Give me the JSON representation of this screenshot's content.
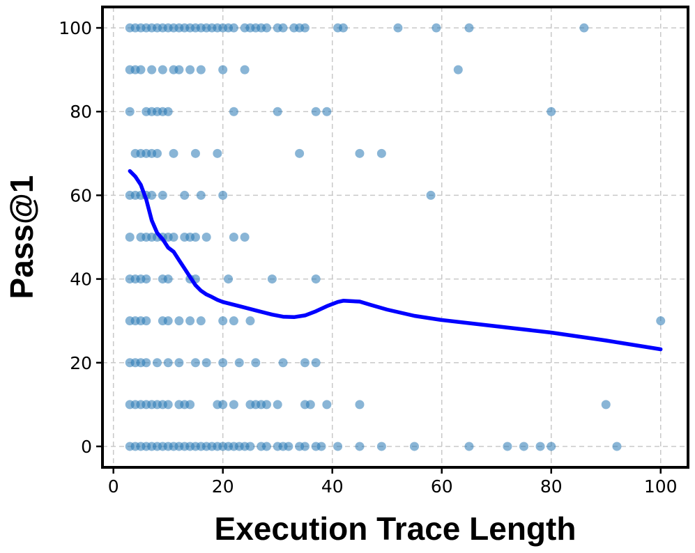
{
  "chart_data": {
    "type": "scatter",
    "xlabel": "Execution Trace Length",
    "ylabel": "Pass@1",
    "xlim": [
      -2,
      105
    ],
    "ylim": [
      -5,
      105
    ],
    "x_ticks": [
      0,
      20,
      40,
      60,
      80,
      100
    ],
    "y_ticks": [
      0,
      20,
      40,
      60,
      80,
      100
    ],
    "grid": true,
    "colors": {
      "points": "#2878b5",
      "trend": "#0000ff",
      "grid": "#c8c8c8"
    },
    "series": [
      {
        "type": "scatter",
        "points": [
          [
            3,
            100
          ],
          [
            4,
            100
          ],
          [
            5,
            100
          ],
          [
            6,
            100
          ],
          [
            7,
            100
          ],
          [
            8,
            100
          ],
          [
            9,
            100
          ],
          [
            10,
            100
          ],
          [
            11,
            100
          ],
          [
            12,
            100
          ],
          [
            13,
            100
          ],
          [
            14,
            100
          ],
          [
            15,
            100
          ],
          [
            16,
            100
          ],
          [
            17,
            100
          ],
          [
            18,
            100
          ],
          [
            19,
            100
          ],
          [
            20,
            100
          ],
          [
            21,
            100
          ],
          [
            22,
            100
          ],
          [
            24,
            100
          ],
          [
            25,
            100
          ],
          [
            26,
            100
          ],
          [
            27,
            100
          ],
          [
            28,
            100
          ],
          [
            30,
            100
          ],
          [
            31,
            100
          ],
          [
            33,
            100
          ],
          [
            34,
            100
          ],
          [
            35,
            100
          ],
          [
            41,
            100
          ],
          [
            42,
            100
          ],
          [
            52,
            100
          ],
          [
            59,
            100
          ],
          [
            65,
            100
          ],
          [
            86,
            100
          ],
          [
            3,
            90
          ],
          [
            4,
            90
          ],
          [
            5,
            90
          ],
          [
            7,
            90
          ],
          [
            9,
            90
          ],
          [
            11,
            90
          ],
          [
            12,
            90
          ],
          [
            14,
            90
          ],
          [
            16,
            90
          ],
          [
            20,
            90
          ],
          [
            24,
            90
          ],
          [
            63,
            90
          ],
          [
            3,
            80
          ],
          [
            6,
            80
          ],
          [
            7,
            80
          ],
          [
            8,
            80
          ],
          [
            9,
            80
          ],
          [
            10,
            80
          ],
          [
            22,
            80
          ],
          [
            30,
            80
          ],
          [
            37,
            80
          ],
          [
            39,
            80
          ],
          [
            80,
            80
          ],
          [
            4,
            70
          ],
          [
            5,
            70
          ],
          [
            6,
            70
          ],
          [
            7,
            70
          ],
          [
            8,
            70
          ],
          [
            11,
            70
          ],
          [
            15,
            70
          ],
          [
            19,
            70
          ],
          [
            34,
            70
          ],
          [
            45,
            70
          ],
          [
            49,
            70
          ],
          [
            3,
            60
          ],
          [
            4,
            60
          ],
          [
            5,
            60
          ],
          [
            6,
            60
          ],
          [
            7,
            60
          ],
          [
            9,
            60
          ],
          [
            13,
            60
          ],
          [
            16,
            60
          ],
          [
            20,
            60
          ],
          [
            58,
            60
          ],
          [
            3,
            50
          ],
          [
            5,
            50
          ],
          [
            6,
            50
          ],
          [
            7,
            50
          ],
          [
            8,
            50
          ],
          [
            9,
            50
          ],
          [
            10,
            50
          ],
          [
            11,
            50
          ],
          [
            13,
            50
          ],
          [
            14,
            50
          ],
          [
            15,
            50
          ],
          [
            17,
            50
          ],
          [
            22,
            50
          ],
          [
            24,
            50
          ],
          [
            3,
            40
          ],
          [
            4,
            40
          ],
          [
            5,
            40
          ],
          [
            6,
            40
          ],
          [
            9,
            40
          ],
          [
            10,
            40
          ],
          [
            14,
            40
          ],
          [
            15,
            40
          ],
          [
            21,
            40
          ],
          [
            29,
            40
          ],
          [
            37,
            40
          ],
          [
            3,
            30
          ],
          [
            4,
            30
          ],
          [
            5,
            30
          ],
          [
            6,
            30
          ],
          [
            9,
            30
          ],
          [
            10,
            30
          ],
          [
            12,
            30
          ],
          [
            14,
            30
          ],
          [
            16,
            30
          ],
          [
            20,
            30
          ],
          [
            22,
            30
          ],
          [
            25,
            30
          ],
          [
            100,
            30
          ],
          [
            3,
            20
          ],
          [
            4,
            20
          ],
          [
            5,
            20
          ],
          [
            6,
            20
          ],
          [
            8,
            20
          ],
          [
            10,
            20
          ],
          [
            12,
            20
          ],
          [
            15,
            20
          ],
          [
            17,
            20
          ],
          [
            20,
            20
          ],
          [
            23,
            20
          ],
          [
            26,
            20
          ],
          [
            31,
            20
          ],
          [
            35,
            20
          ],
          [
            37,
            20
          ],
          [
            3,
            10
          ],
          [
            4,
            10
          ],
          [
            5,
            10
          ],
          [
            6,
            10
          ],
          [
            7,
            10
          ],
          [
            8,
            10
          ],
          [
            9,
            10
          ],
          [
            10,
            10
          ],
          [
            12,
            10
          ],
          [
            13,
            10
          ],
          [
            14,
            10
          ],
          [
            19,
            10
          ],
          [
            20,
            10
          ],
          [
            22,
            10
          ],
          [
            25,
            10
          ],
          [
            26,
            10
          ],
          [
            27,
            10
          ],
          [
            28,
            10
          ],
          [
            30,
            10
          ],
          [
            35,
            10
          ],
          [
            36,
            10
          ],
          [
            39,
            10
          ],
          [
            45,
            10
          ],
          [
            90,
            10
          ],
          [
            3,
            0
          ],
          [
            4,
            0
          ],
          [
            5,
            0
          ],
          [
            6,
            0
          ],
          [
            7,
            0
          ],
          [
            8,
            0
          ],
          [
            9,
            0
          ],
          [
            10,
            0
          ],
          [
            11,
            0
          ],
          [
            12,
            0
          ],
          [
            13,
            0
          ],
          [
            14,
            0
          ],
          [
            15,
            0
          ],
          [
            16,
            0
          ],
          [
            17,
            0
          ],
          [
            18,
            0
          ],
          [
            19,
            0
          ],
          [
            20,
            0
          ],
          [
            21,
            0
          ],
          [
            22,
            0
          ],
          [
            23,
            0
          ],
          [
            24,
            0
          ],
          [
            25,
            0
          ],
          [
            27,
            0
          ],
          [
            28,
            0
          ],
          [
            30,
            0
          ],
          [
            31,
            0
          ],
          [
            32,
            0
          ],
          [
            34,
            0
          ],
          [
            35,
            0
          ],
          [
            37,
            0
          ],
          [
            38,
            0
          ],
          [
            41,
            0
          ],
          [
            45,
            0
          ],
          [
            49,
            0
          ],
          [
            55,
            0
          ],
          [
            65,
            0
          ],
          [
            72,
            0
          ],
          [
            75,
            0
          ],
          [
            78,
            0
          ],
          [
            80,
            0
          ],
          [
            92,
            0
          ]
        ]
      },
      {
        "type": "line",
        "points": [
          [
            3,
            65.8
          ],
          [
            4,
            64.5
          ],
          [
            5,
            62.5
          ],
          [
            6,
            59
          ],
          [
            7,
            54
          ],
          [
            8,
            51
          ],
          [
            9,
            49.5
          ],
          [
            10,
            47.5
          ],
          [
            11,
            46.5
          ],
          [
            12,
            44.5
          ],
          [
            13,
            42.5
          ],
          [
            14,
            40.5
          ],
          [
            15,
            38.5
          ],
          [
            16,
            37.2
          ],
          [
            17,
            36.3
          ],
          [
            18,
            35.7
          ],
          [
            19,
            35
          ],
          [
            20,
            34.5
          ],
          [
            23,
            33.5
          ],
          [
            26,
            32.5
          ],
          [
            29,
            31.5
          ],
          [
            31,
            31
          ],
          [
            33,
            30.9
          ],
          [
            35,
            31.3
          ],
          [
            37,
            32.3
          ],
          [
            39,
            33.5
          ],
          [
            41,
            34.5
          ],
          [
            42,
            34.8
          ],
          [
            45,
            34.6
          ],
          [
            47,
            33.8
          ],
          [
            50,
            32.7
          ],
          [
            55,
            31.2
          ],
          [
            60,
            30.2
          ],
          [
            70,
            28.7
          ],
          [
            80,
            27.2
          ],
          [
            90,
            25.3
          ],
          [
            100,
            23.2
          ]
        ]
      }
    ]
  }
}
